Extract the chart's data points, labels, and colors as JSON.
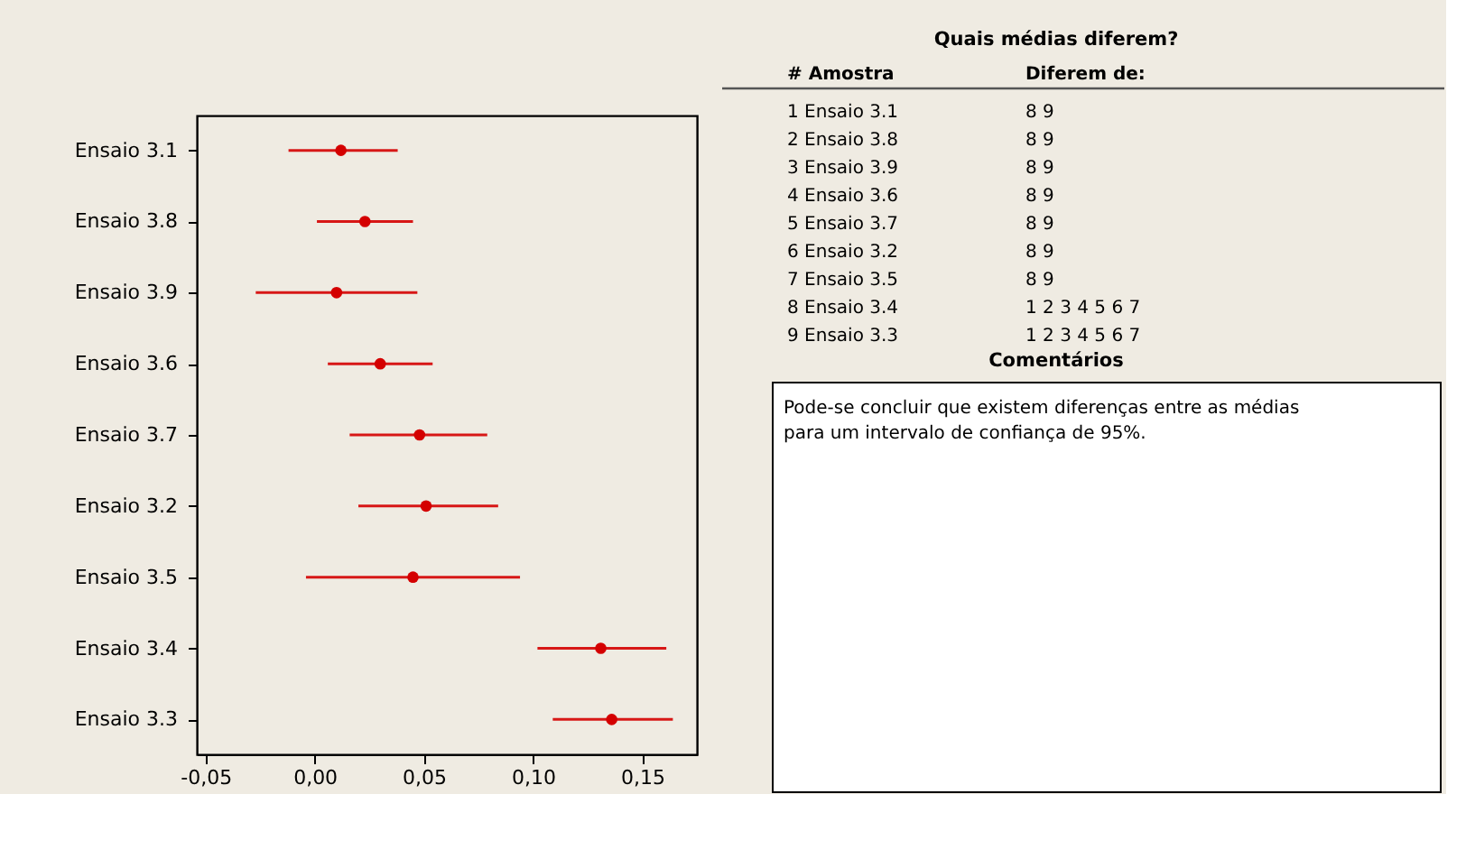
{
  "chart_data": [
    {
      "type": "scatter",
      "orientation": "horizontal",
      "categories": [
        "Ensaio 3.1",
        "Ensaio 3.8",
        "Ensaio 3.9",
        "Ensaio 3.6",
        "Ensaio 3.7",
        "Ensaio 3.2",
        "Ensaio 3.5",
        "Ensaio 3.4",
        "Ensaio 3.3"
      ],
      "series": [
        {
          "color": "#d40000",
          "values": [
            0.012,
            0.023,
            0.01,
            0.03,
            0.048,
            0.051,
            0.045,
            0.131,
            0.136
          ],
          "errors": [
            [
              -0.012,
              0.038
            ],
            [
              0.001,
              0.045
            ],
            [
              -0.027,
              0.047
            ],
            [
              0.006,
              0.054
            ],
            [
              0.016,
              0.079
            ],
            [
              0.02,
              0.084
            ],
            [
              -0.004,
              0.094
            ],
            [
              0.102,
              0.161
            ],
            [
              0.109,
              0.164
            ]
          ]
        }
      ],
      "xlim": [
        -0.054,
        0.175
      ],
      "xticks": [
        {
          "value": -0.05,
          "label": "-0,05"
        },
        {
          "value": 0,
          "label": "0,00"
        },
        {
          "value": 0.05,
          "label": "0,05"
        },
        {
          "value": 0.1,
          "label": "0,10"
        },
        {
          "value": 0.15,
          "label": "0,15"
        }
      ],
      "grid": false,
      "marker": "circle"
    },
    {
      "type": "other",
      "title": "Quais médias diferem?",
      "annotations": [
        "#  Amostra",
        "Diferem de:",
        "1  Ensaio 3.1",
        "8  9",
        "2  Ensaio 3.8",
        "8  9",
        "3  Ensaio 3.9",
        "8  9",
        "4  Ensaio 3.6",
        "8  9",
        "5  Ensaio 3.7",
        "8  9",
        "6  Ensaio 3.2",
        "8  9",
        "7  Ensaio 3.5",
        "8  9",
        "8  Ensaio 3.4",
        "1  2  3  4  5  6  7",
        "9  Ensaio 3.3",
        "1  2  3  4  5  6  7"
      ]
    },
    {
      "type": "other",
      "title": "Comentários",
      "annotations": [
        "Pode-se concluir que existem diferenças entre as médias",
        "para um intervalo de confiança de 95%."
      ]
    }
  ]
}
